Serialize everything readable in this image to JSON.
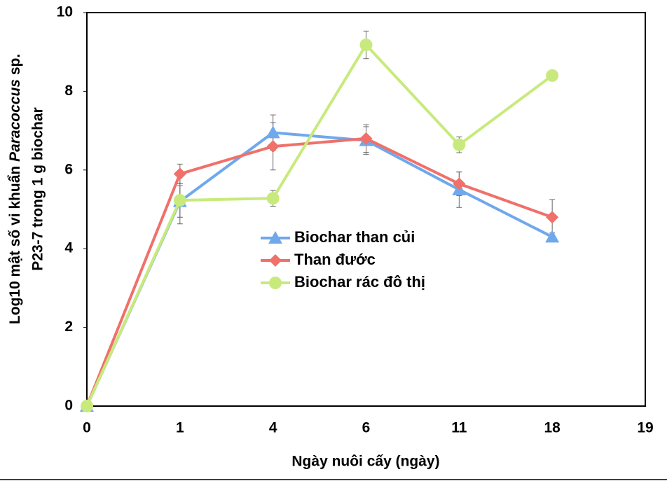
{
  "chart_data": {
    "type": "line",
    "xlabel": "Ngày nuôi cấy (ngày)",
    "ylabel": {
      "line1": [
        "Log10 mật số vi khuẩn",
        "Paracoccus",
        "sp."
      ],
      "line2": "P23-7 trong 1 g biochar"
    },
    "categories": [
      "0",
      "1",
      "4",
      "6",
      "11",
      "18",
      "19"
    ],
    "ylim": [
      0,
      10
    ],
    "yticks": [
      0,
      2,
      4,
      6,
      8,
      10
    ],
    "legend": "center",
    "series": [
      {
        "name": "Biochar than củi",
        "color": "#6fa8ec",
        "marker": "triangle",
        "values": [
          0,
          5.2,
          6.95,
          6.75,
          5.5,
          4.3,
          null
        ],
        "errors": [
          0,
          0.4,
          0.45,
          0.35,
          0.45,
          0.1,
          null
        ]
      },
      {
        "name": "Than đước",
        "color": "#f0706a",
        "marker": "diamond",
        "values": [
          0,
          5.9,
          6.6,
          6.8,
          5.65,
          4.8,
          null
        ],
        "errors": [
          0,
          0.25,
          0.6,
          0.35,
          0.3,
          0.45,
          null
        ]
      },
      {
        "name": "Biochar rác đô thị",
        "color": "#c8ea7c",
        "marker": "circle",
        "values": [
          0,
          5.23,
          5.28,
          9.18,
          6.64,
          8.4,
          null
        ],
        "errors": [
          0,
          0.6,
          0.2,
          0.35,
          0.2,
          0.1,
          null
        ]
      }
    ]
  }
}
